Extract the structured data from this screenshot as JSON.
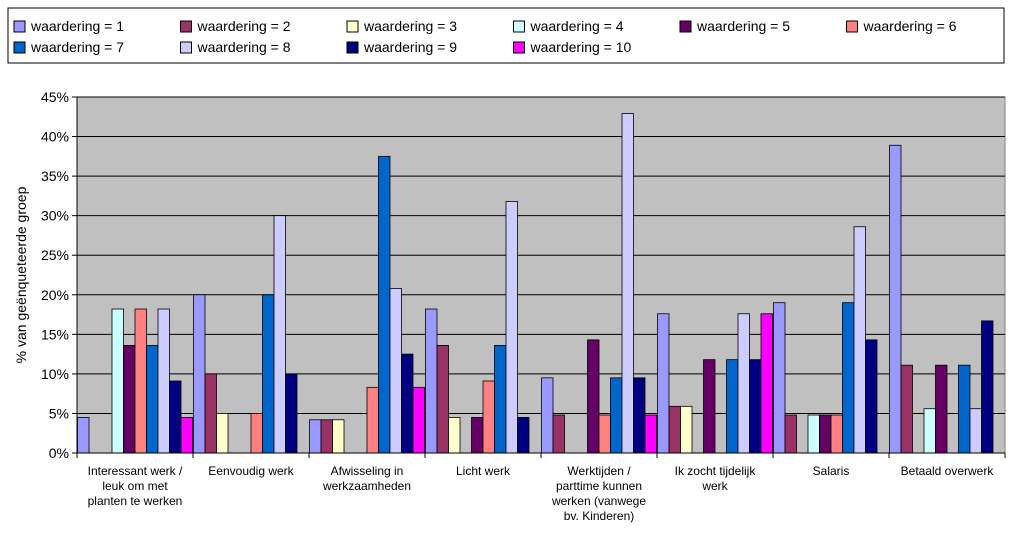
{
  "chart_data": {
    "type": "bar",
    "title": "",
    "xlabel": "",
    "ylabel": "% van geënqueteerde groep",
    "ylim": [
      0,
      45
    ],
    "yticks": [
      "0%",
      "5%",
      "10%",
      "15%",
      "20%",
      "25%",
      "30%",
      "35%",
      "40%",
      "45%"
    ],
    "grid": true,
    "legend_position": "top",
    "plot_background": "#c0c0c0",
    "categories": [
      [
        "Interessant werk /",
        "leuk om met",
        "planten te werken"
      ],
      [
        "Eenvoudig werk"
      ],
      [
        "Afwisseling in",
        "werkzaamheden"
      ],
      [
        "Licht werk"
      ],
      [
        "Werktijden /",
        "parttime kunnen",
        "werken (vanwege",
        "bv. Kinderen)"
      ],
      [
        "Ik zocht tijdelijk",
        "werk"
      ],
      [
        "Salaris"
      ],
      [
        "Betaald overwerk"
      ]
    ],
    "series": [
      {
        "name": "waardering = 1",
        "color": "#9999ff",
        "values": [
          4.5,
          20.0,
          4.2,
          18.2,
          9.5,
          17.6,
          19.0,
          38.9
        ]
      },
      {
        "name": "waardering = 2",
        "color": "#993366",
        "values": [
          0,
          10.0,
          4.2,
          13.6,
          4.8,
          5.9,
          4.8,
          11.1
        ]
      },
      {
        "name": "waardering = 3",
        "color": "#ffffcc",
        "values": [
          0,
          5.0,
          4.2,
          4.5,
          0,
          5.9,
          0,
          0
        ]
      },
      {
        "name": "waardering = 4",
        "color": "#ccffff",
        "values": [
          18.2,
          0,
          0,
          0,
          0,
          0,
          4.8,
          5.6
        ]
      },
      {
        "name": "waardering = 5",
        "color": "#660066",
        "values": [
          13.6,
          0,
          0,
          4.5,
          14.3,
          11.8,
          4.8,
          11.1
        ]
      },
      {
        "name": "waardering = 6",
        "color": "#ff8080",
        "values": [
          18.2,
          5.0,
          8.3,
          9.1,
          4.8,
          0,
          4.8,
          0
        ]
      },
      {
        "name": "waardering = 7",
        "color": "#0066cc",
        "values": [
          13.6,
          20.0,
          37.5,
          13.6,
          9.5,
          11.8,
          19.0,
          11.1
        ]
      },
      {
        "name": "waardering = 8",
        "color": "#ccccff",
        "values": [
          18.2,
          30.0,
          20.8,
          31.8,
          42.9,
          17.6,
          28.6,
          5.6
        ]
      },
      {
        "name": "waardering = 9",
        "color": "#000080",
        "values": [
          9.1,
          10.0,
          12.5,
          4.5,
          9.5,
          11.8,
          14.3,
          16.7
        ]
      },
      {
        "name": "waardering = 10",
        "color": "#ff00ff",
        "values": [
          4.5,
          0,
          8.3,
          0,
          4.8,
          17.6,
          0,
          0
        ]
      }
    ]
  }
}
